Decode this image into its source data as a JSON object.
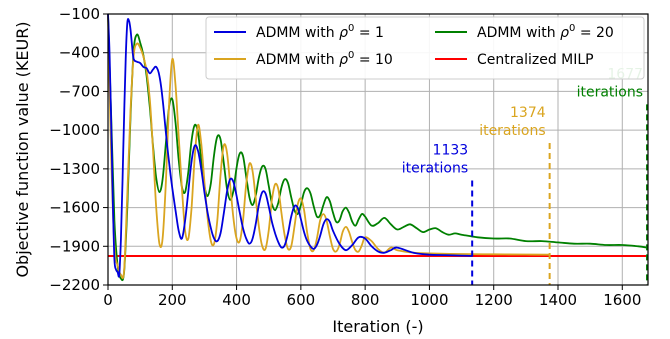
{
  "chart_data": {
    "type": "line",
    "xlabel": "Iteration (-)",
    "ylabel": "Objective function value (KEUR)",
    "xlim": [
      0,
      1680
    ],
    "ylim": [
      -2200,
      -100
    ],
    "xticks": [
      0,
      200,
      400,
      600,
      800,
      1000,
      1200,
      1400,
      1600
    ],
    "xtick_labels": [
      "0",
      "200",
      "400",
      "600",
      "800",
      "1000",
      "1200",
      "1400",
      "1600"
    ],
    "yticks": [
      -2200,
      -1900,
      -1600,
      -1300,
      -1000,
      -700,
      -400,
      -100
    ],
    "ytick_labels": [
      "−2200",
      "−1900",
      "−1600",
      "−1300",
      "−1000",
      "−700",
      "−400",
      "−100"
    ],
    "grid": true,
    "legend_position": "top-right",
    "legend": {
      "s1": {
        "prefix": "ADMM with ",
        "sym": "ρ",
        "sup": "0",
        "suffix": " = 1"
      },
      "s2": {
        "prefix": "ADMM with ",
        "sym": "ρ",
        "sup": "0",
        "suffix": " = 10"
      },
      "s3": {
        "prefix": "ADMM with ",
        "sym": "ρ",
        "sup": "0",
        "suffix": " = 20"
      },
      "milp": "Centralized MILP"
    },
    "colors": {
      "s1": "#0000dd",
      "s2": "#daa520",
      "s3": "#008000",
      "milp": "#ff0000"
    },
    "series": [
      {
        "id": "s1",
        "x": [
          0,
          5,
          10,
          15,
          20,
          25,
          30,
          35,
          40,
          45,
          50,
          55,
          60,
          65,
          70,
          75,
          80,
          90,
          100,
          110,
          120,
          130,
          140,
          150,
          160,
          170,
          180,
          190,
          200,
          210,
          220,
          230,
          240,
          250,
          260,
          270,
          280,
          290,
          300,
          310,
          320,
          330,
          340,
          350,
          360,
          370,
          380,
          390,
          400,
          410,
          420,
          430,
          440,
          450,
          460,
          470,
          480,
          490,
          500,
          510,
          520,
          530,
          540,
          550,
          560,
          570,
          580,
          590,
          600,
          610,
          620,
          630,
          640,
          650,
          660,
          670,
          680,
          690,
          700,
          720,
          740,
          760,
          780,
          800,
          820,
          840,
          860,
          880,
          900,
          950,
          1000,
          1050,
          1100,
          1133
        ],
        "y": [
          -100,
          -420,
          -950,
          -1550,
          -2000,
          -2080,
          -2100,
          -2120,
          -1850,
          -1400,
          -900,
          -450,
          -170,
          -150,
          -220,
          -350,
          -450,
          -470,
          -480,
          -510,
          -520,
          -560,
          -530,
          -510,
          -580,
          -760,
          -1020,
          -1250,
          -1450,
          -1620,
          -1780,
          -1840,
          -1700,
          -1470,
          -1240,
          -1120,
          -1160,
          -1300,
          -1480,
          -1640,
          -1760,
          -1840,
          -1860,
          -1800,
          -1650,
          -1480,
          -1380,
          -1400,
          -1510,
          -1640,
          -1760,
          -1840,
          -1880,
          -1840,
          -1720,
          -1570,
          -1480,
          -1490,
          -1590,
          -1710,
          -1800,
          -1870,
          -1910,
          -1890,
          -1800,
          -1670,
          -1590,
          -1600,
          -1690,
          -1790,
          -1860,
          -1900,
          -1920,
          -1890,
          -1820,
          -1730,
          -1690,
          -1710,
          -1780,
          -1880,
          -1930,
          -1890,
          -1830,
          -1840,
          -1900,
          -1940,
          -1950,
          -1930,
          -1910,
          -1950,
          -1965,
          -1968,
          -1972,
          -1975
        ]
      },
      {
        "id": "s2",
        "x": [
          0,
          10,
          20,
          30,
          40,
          50,
          60,
          70,
          80,
          90,
          100,
          110,
          120,
          130,
          140,
          150,
          160,
          170,
          180,
          190,
          200,
          210,
          220,
          230,
          240,
          250,
          260,
          270,
          280,
          290,
          300,
          310,
          320,
          330,
          340,
          350,
          360,
          370,
          380,
          390,
          400,
          410,
          420,
          430,
          440,
          450,
          460,
          470,
          480,
          490,
          500,
          510,
          520,
          530,
          540,
          550,
          560,
          570,
          580,
          590,
          600,
          610,
          620,
          630,
          640,
          650,
          660,
          670,
          680,
          690,
          700,
          710,
          720,
          730,
          740,
          750,
          760,
          770,
          780,
          790,
          800,
          820,
          840,
          860,
          880,
          900,
          950,
          1000,
          1100,
          1200,
          1300,
          1374
        ],
        "y": [
          -100,
          -1200,
          -1900,
          -2050,
          -2120,
          -2090,
          -1500,
          -850,
          -420,
          -330,
          -360,
          -430,
          -540,
          -760,
          -1150,
          -1600,
          -1880,
          -1840,
          -1400,
          -800,
          -450,
          -650,
          -1050,
          -1450,
          -1780,
          -1840,
          -1600,
          -1200,
          -960,
          -1100,
          -1400,
          -1680,
          -1860,
          -1880,
          -1700,
          -1350,
          -1120,
          -1170,
          -1420,
          -1680,
          -1840,
          -1860,
          -1700,
          -1420,
          -1260,
          -1320,
          -1540,
          -1760,
          -1900,
          -1920,
          -1780,
          -1540,
          -1420,
          -1460,
          -1650,
          -1820,
          -1920,
          -1900,
          -1750,
          -1580,
          -1530,
          -1620,
          -1800,
          -1920,
          -1930,
          -1840,
          -1700,
          -1650,
          -1700,
          -1820,
          -1920,
          -1940,
          -1890,
          -1790,
          -1750,
          -1790,
          -1870,
          -1930,
          -1940,
          -1890,
          -1830,
          -1860,
          -1920,
          -1950,
          -1910,
          -1930,
          -1950,
          -1955,
          -1960,
          -1962,
          -1964,
          -1965
        ]
      },
      {
        "id": "s3",
        "x": [
          0,
          10,
          20,
          30,
          40,
          50,
          60,
          70,
          80,
          90,
          100,
          110,
          120,
          130,
          140,
          150,
          160,
          170,
          180,
          190,
          200,
          210,
          220,
          230,
          240,
          250,
          260,
          270,
          280,
          290,
          300,
          310,
          320,
          330,
          340,
          350,
          360,
          370,
          380,
          390,
          400,
          410,
          420,
          430,
          440,
          450,
          460,
          470,
          480,
          490,
          500,
          510,
          520,
          530,
          540,
          550,
          560,
          570,
          580,
          590,
          600,
          610,
          620,
          630,
          640,
          650,
          660,
          670,
          680,
          690,
          700,
          710,
          720,
          730,
          740,
          750,
          760,
          770,
          780,
          790,
          800,
          820,
          840,
          860,
          880,
          900,
          920,
          940,
          960,
          980,
          1000,
          1020,
          1040,
          1060,
          1080,
          1100,
          1150,
          1200,
          1250,
          1300,
          1350,
          1400,
          1450,
          1500,
          1550,
          1600,
          1650,
          1677
        ],
        "y": [
          -100,
          -900,
          -1700,
          -2050,
          -2150,
          -2100,
          -1600,
          -900,
          -380,
          -260,
          -320,
          -420,
          -580,
          -820,
          -1120,
          -1370,
          -1480,
          -1380,
          -1100,
          -820,
          -760,
          -940,
          -1230,
          -1440,
          -1480,
          -1320,
          -1080,
          -960,
          -1020,
          -1230,
          -1430,
          -1510,
          -1410,
          -1190,
          -1050,
          -1070,
          -1250,
          -1450,
          -1540,
          -1470,
          -1290,
          -1180,
          -1200,
          -1360,
          -1520,
          -1580,
          -1500,
          -1360,
          -1280,
          -1300,
          -1430,
          -1570,
          -1620,
          -1560,
          -1440,
          -1380,
          -1410,
          -1520,
          -1620,
          -1650,
          -1580,
          -1480,
          -1450,
          -1490,
          -1590,
          -1670,
          -1660,
          -1580,
          -1520,
          -1550,
          -1640,
          -1710,
          -1700,
          -1630,
          -1600,
          -1640,
          -1710,
          -1740,
          -1690,
          -1650,
          -1670,
          -1740,
          -1720,
          -1680,
          -1730,
          -1770,
          -1750,
          -1730,
          -1760,
          -1790,
          -1770,
          -1760,
          -1790,
          -1810,
          -1800,
          -1810,
          -1830,
          -1840,
          -1840,
          -1860,
          -1860,
          -1870,
          -1880,
          -1880,
          -1890,
          -1890,
          -1900,
          -1910
        ]
      }
    ],
    "milp_value": -1975,
    "stop_markers": [
      {
        "id": "s1",
        "x": 1133,
        "y_top": -1390,
        "line1": "1133",
        "line2": "iterations"
      },
      {
        "id": "s2",
        "x": 1374,
        "y_top": -1100,
        "line1": "1374",
        "line2": "iterations"
      },
      {
        "id": "s3",
        "x": 1677,
        "y_top": -800,
        "line1": "1677",
        "line2": "iterations"
      }
    ]
  }
}
